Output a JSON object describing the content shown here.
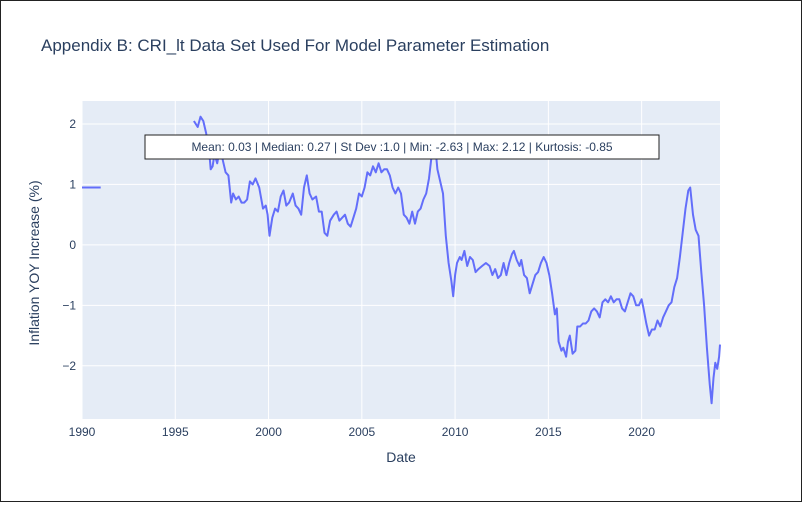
{
  "chart_data": {
    "type": "line",
    "title": "Appendix B: CRI_lt Data Set Used For Model Parameter Estimation",
    "xlabel": "Date",
    "ylabel": "Inflation YOY Increase (%)",
    "xlim": [
      1990.0,
      2024.2
    ],
    "ylim": [
      -2.88,
      2.38
    ],
    "x_ticks": [
      "1990",
      "1995",
      "2000",
      "2005",
      "2010",
      "2015",
      "2020"
    ],
    "y_ticks": [
      "2",
      "1",
      "0",
      "−1",
      "−2"
    ],
    "annotation": "Mean: 0.03 | Median: 0.27 | St Dev :1.0 | Min: -2.63 | Max: 2.12 | Kurtosis: -0.85",
    "colors": {
      "line": "#636efa",
      "plot_bg": "#e5ecf6",
      "grid": "#ffffff",
      "text": "#2a3f5f"
    },
    "series": [
      {
        "segments": [
          [
            [
              1990.0,
              0.95
            ],
            [
              1991.0,
              0.95
            ]
          ],
          [
            [
              1996.0,
              2.05
            ],
            [
              1996.2,
              1.95
            ],
            [
              1996.35,
              2.12
            ],
            [
              1996.5,
              2.05
            ],
            [
              1996.65,
              1.85
            ],
            [
              1996.8,
              1.6
            ],
            [
              1996.9,
              1.25
            ],
            [
              1997.0,
              1.3
            ],
            [
              1997.1,
              1.5
            ],
            [
              1997.25,
              1.35
            ],
            [
              1997.4,
              1.6
            ],
            [
              1997.55,
              1.4
            ],
            [
              1997.7,
              1.2
            ],
            [
              1997.85,
              1.15
            ],
            [
              1998.0,
              0.7
            ],
            [
              1998.1,
              0.85
            ],
            [
              1998.25,
              0.75
            ],
            [
              1998.4,
              0.8
            ],
            [
              1998.55,
              0.7
            ],
            [
              1998.7,
              0.7
            ],
            [
              1998.85,
              0.75
            ],
            [
              1999.0,
              1.05
            ],
            [
              1999.15,
              1.0
            ],
            [
              1999.3,
              1.1
            ],
            [
              1999.5,
              0.95
            ],
            [
              1999.7,
              0.6
            ],
            [
              1999.85,
              0.65
            ],
            [
              1999.95,
              0.5
            ],
            [
              2000.05,
              0.15
            ],
            [
              2000.2,
              0.45
            ],
            [
              2000.35,
              0.6
            ],
            [
              2000.5,
              0.55
            ],
            [
              2000.65,
              0.8
            ],
            [
              2000.8,
              0.9
            ],
            [
              2000.95,
              0.65
            ],
            [
              2001.1,
              0.7
            ],
            [
              2001.3,
              0.85
            ],
            [
              2001.45,
              0.65
            ],
            [
              2001.6,
              0.6
            ],
            [
              2001.75,
              0.5
            ],
            [
              2001.9,
              0.95
            ],
            [
              2002.05,
              1.15
            ],
            [
              2002.2,
              0.85
            ],
            [
              2002.35,
              0.75
            ],
            [
              2002.55,
              0.8
            ],
            [
              2002.7,
              0.55
            ],
            [
              2002.85,
              0.55
            ],
            [
              2003.0,
              0.2
            ],
            [
              2003.15,
              0.15
            ],
            [
              2003.3,
              0.4
            ],
            [
              2003.5,
              0.5
            ],
            [
              2003.65,
              0.55
            ],
            [
              2003.8,
              0.4
            ],
            [
              2003.95,
              0.45
            ],
            [
              2004.1,
              0.5
            ],
            [
              2004.25,
              0.35
            ],
            [
              2004.4,
              0.3
            ],
            [
              2004.55,
              0.45
            ],
            [
              2004.7,
              0.6
            ],
            [
              2004.85,
              0.85
            ],
            [
              2005.0,
              0.8
            ],
            [
              2005.15,
              0.95
            ],
            [
              2005.3,
              1.2
            ],
            [
              2005.45,
              1.15
            ],
            [
              2005.6,
              1.3
            ],
            [
              2005.75,
              1.2
            ],
            [
              2005.9,
              1.35
            ],
            [
              2006.05,
              1.2
            ],
            [
              2006.2,
              1.25
            ],
            [
              2006.35,
              1.25
            ],
            [
              2006.5,
              1.15
            ],
            [
              2006.65,
              0.95
            ],
            [
              2006.8,
              0.85
            ],
            [
              2006.95,
              0.95
            ],
            [
              2007.1,
              0.85
            ],
            [
              2007.25,
              0.5
            ],
            [
              2007.4,
              0.45
            ],
            [
              2007.55,
              0.35
            ],
            [
              2007.7,
              0.55
            ],
            [
              2007.85,
              0.35
            ],
            [
              2008.0,
              0.55
            ],
            [
              2008.15,
              0.6
            ],
            [
              2008.3,
              0.75
            ],
            [
              2008.45,
              0.85
            ],
            [
              2008.6,
              1.1
            ],
            [
              2008.75,
              1.5
            ],
            [
              2008.9,
              1.75
            ],
            [
              2009.05,
              1.25
            ],
            [
              2009.2,
              1.05
            ],
            [
              2009.35,
              0.85
            ],
            [
              2009.5,
              0.15
            ],
            [
              2009.65,
              -0.3
            ],
            [
              2009.8,
              -0.6
            ],
            [
              2009.9,
              -0.85
            ],
            [
              2010.0,
              -0.5
            ],
            [
              2010.1,
              -0.3
            ],
            [
              2010.25,
              -0.2
            ],
            [
              2010.35,
              -0.25
            ],
            [
              2010.5,
              -0.1
            ],
            [
              2010.65,
              -0.35
            ],
            [
              2010.8,
              -0.2
            ],
            [
              2010.95,
              -0.25
            ],
            [
              2011.1,
              -0.45
            ],
            [
              2011.25,
              -0.4
            ],
            [
              2011.45,
              -0.35
            ],
            [
              2011.65,
              -0.3
            ],
            [
              2011.85,
              -0.35
            ],
            [
              2012.0,
              -0.5
            ],
            [
              2012.15,
              -0.4
            ],
            [
              2012.3,
              -0.55
            ],
            [
              2012.45,
              -0.5
            ],
            [
              2012.6,
              -0.3
            ],
            [
              2012.75,
              -0.5
            ],
            [
              2012.9,
              -0.3
            ],
            [
              2013.05,
              -0.15
            ],
            [
              2013.15,
              -0.1
            ],
            [
              2013.3,
              -0.25
            ],
            [
              2013.45,
              -0.35
            ],
            [
              2013.55,
              -0.25
            ],
            [
              2013.7,
              -0.5
            ],
            [
              2013.85,
              -0.55
            ],
            [
              2014.0,
              -0.8
            ],
            [
              2014.15,
              -0.65
            ],
            [
              2014.3,
              -0.5
            ],
            [
              2014.45,
              -0.45
            ],
            [
              2014.6,
              -0.3
            ],
            [
              2014.75,
              -0.2
            ],
            [
              2014.9,
              -0.3
            ],
            [
              2015.05,
              -0.5
            ],
            [
              2015.2,
              -0.8
            ],
            [
              2015.35,
              -1.15
            ],
            [
              2015.45,
              -1.05
            ],
            [
              2015.55,
              -1.6
            ],
            [
              2015.7,
              -1.75
            ],
            [
              2015.8,
              -1.7
            ],
            [
              2015.95,
              -1.85
            ],
            [
              2016.05,
              -1.6
            ],
            [
              2016.15,
              -1.5
            ],
            [
              2016.3,
              -1.8
            ],
            [
              2016.45,
              -1.75
            ],
            [
              2016.55,
              -1.35
            ],
            [
              2016.7,
              -1.35
            ],
            [
              2016.85,
              -1.3
            ],
            [
              2017.0,
              -1.3
            ],
            [
              2017.15,
              -1.25
            ],
            [
              2017.3,
              -1.1
            ],
            [
              2017.45,
              -1.05
            ],
            [
              2017.6,
              -1.1
            ],
            [
              2017.75,
              -1.2
            ],
            [
              2017.9,
              -0.95
            ],
            [
              2018.05,
              -0.9
            ],
            [
              2018.2,
              -0.95
            ],
            [
              2018.35,
              -0.85
            ],
            [
              2018.5,
              -0.95
            ],
            [
              2018.65,
              -0.9
            ],
            [
              2018.8,
              -0.9
            ],
            [
              2018.95,
              -1.05
            ],
            [
              2019.1,
              -1.1
            ],
            [
              2019.25,
              -0.95
            ],
            [
              2019.4,
              -0.8
            ],
            [
              2019.55,
              -0.85
            ],
            [
              2019.7,
              -1.0
            ],
            [
              2019.85,
              -1.0
            ],
            [
              2020.0,
              -0.9
            ],
            [
              2020.1,
              -1.05
            ],
            [
              2020.25,
              -1.3
            ],
            [
              2020.4,
              -1.5
            ],
            [
              2020.55,
              -1.4
            ],
            [
              2020.7,
              -1.4
            ],
            [
              2020.85,
              -1.25
            ],
            [
              2021.0,
              -1.35
            ],
            [
              2021.15,
              -1.2
            ],
            [
              2021.3,
              -1.1
            ],
            [
              2021.45,
              -1.0
            ],
            [
              2021.6,
              -0.95
            ],
            [
              2021.75,
              -0.7
            ],
            [
              2021.9,
              -0.55
            ],
            [
              2022.05,
              -0.2
            ],
            [
              2022.2,
              0.2
            ],
            [
              2022.35,
              0.6
            ],
            [
              2022.5,
              0.9
            ],
            [
              2022.6,
              0.95
            ],
            [
              2022.75,
              0.5
            ],
            [
              2022.9,
              0.25
            ],
            [
              2023.05,
              0.15
            ],
            [
              2023.2,
              -0.45
            ],
            [
              2023.35,
              -1.0
            ],
            [
              2023.5,
              -1.7
            ],
            [
              2023.65,
              -2.3
            ],
            [
              2023.75,
              -2.62
            ],
            [
              2023.85,
              -2.2
            ],
            [
              2023.95,
              -1.95
            ],
            [
              2024.05,
              -2.05
            ],
            [
              2024.15,
              -1.85
            ],
            [
              2024.2,
              -1.65
            ]
          ]
        ]
      }
    ]
  }
}
